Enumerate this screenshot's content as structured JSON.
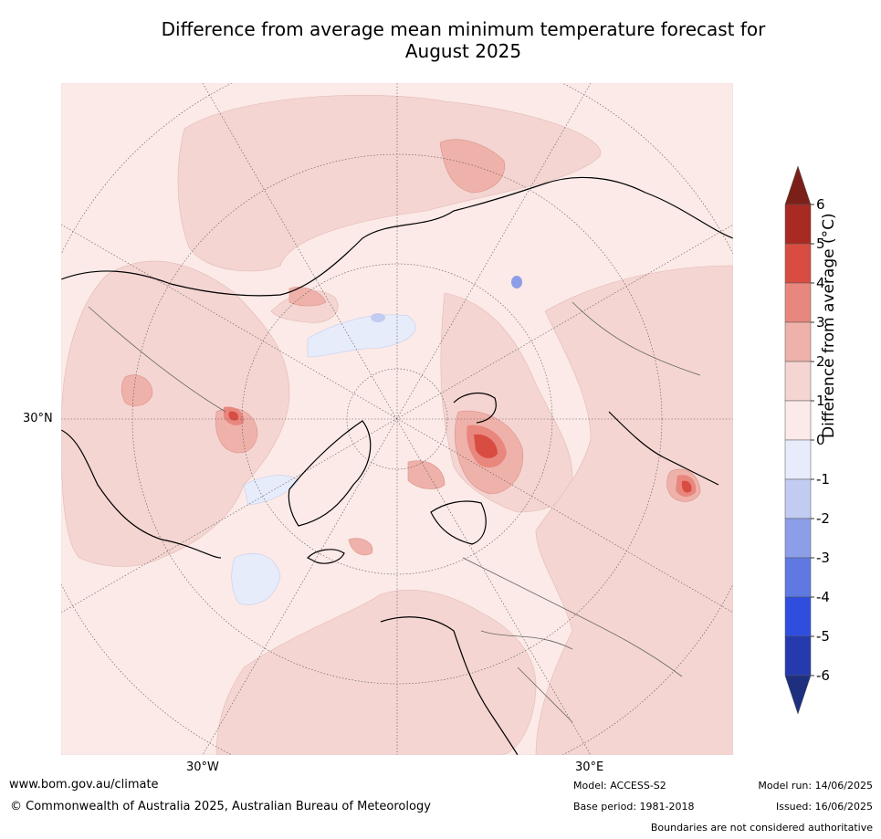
{
  "title_line1": "Difference from average mean minimum temperature forecast for",
  "title_line2": "August 2025",
  "lat_labels": {
    "lat30": "30°N"
  },
  "lon_labels": {
    "w30": "30°W",
    "e30": "30°E"
  },
  "colorbar": {
    "label": "Difference from average (",
    "label_unit": "°C)",
    "ticks": [
      "6",
      "5",
      "4",
      "3",
      "2",
      "1",
      "0",
      "-1",
      "-2",
      "-3",
      "-4",
      "-5",
      "-6"
    ],
    "colors": {
      "gt6": "#7b2018",
      "5to6": "#a82a22",
      "4to5": "#d94c41",
      "3to4": "#e8877e",
      "2to3": "#efb2aa",
      "1to2": "#f4d5d2",
      "0to1": "#fbeae7",
      "m1to0": "#e7ecfb",
      "m2tom1": "#c2cbf1",
      "m3tom2": "#8d9ee9",
      "m4tom3": "#5f78e2",
      "m5tom4": "#2f4ee0",
      "m6tom5": "#243aae",
      "ltm6": "#1e2f80"
    }
  },
  "footer": {
    "url": "www.bom.gov.au/climate",
    "copyright": "© Commonwealth of Australia 2025, Australian Bureau of Meteorology",
    "model": "Model: ACCESS-S2",
    "base_period": "Base period: 1981-2018",
    "model_run": "Model run: 14/06/2025",
    "issued": "Issued: 16/06/2025",
    "boundaries": "Boundaries are not considered authoritative"
  }
}
